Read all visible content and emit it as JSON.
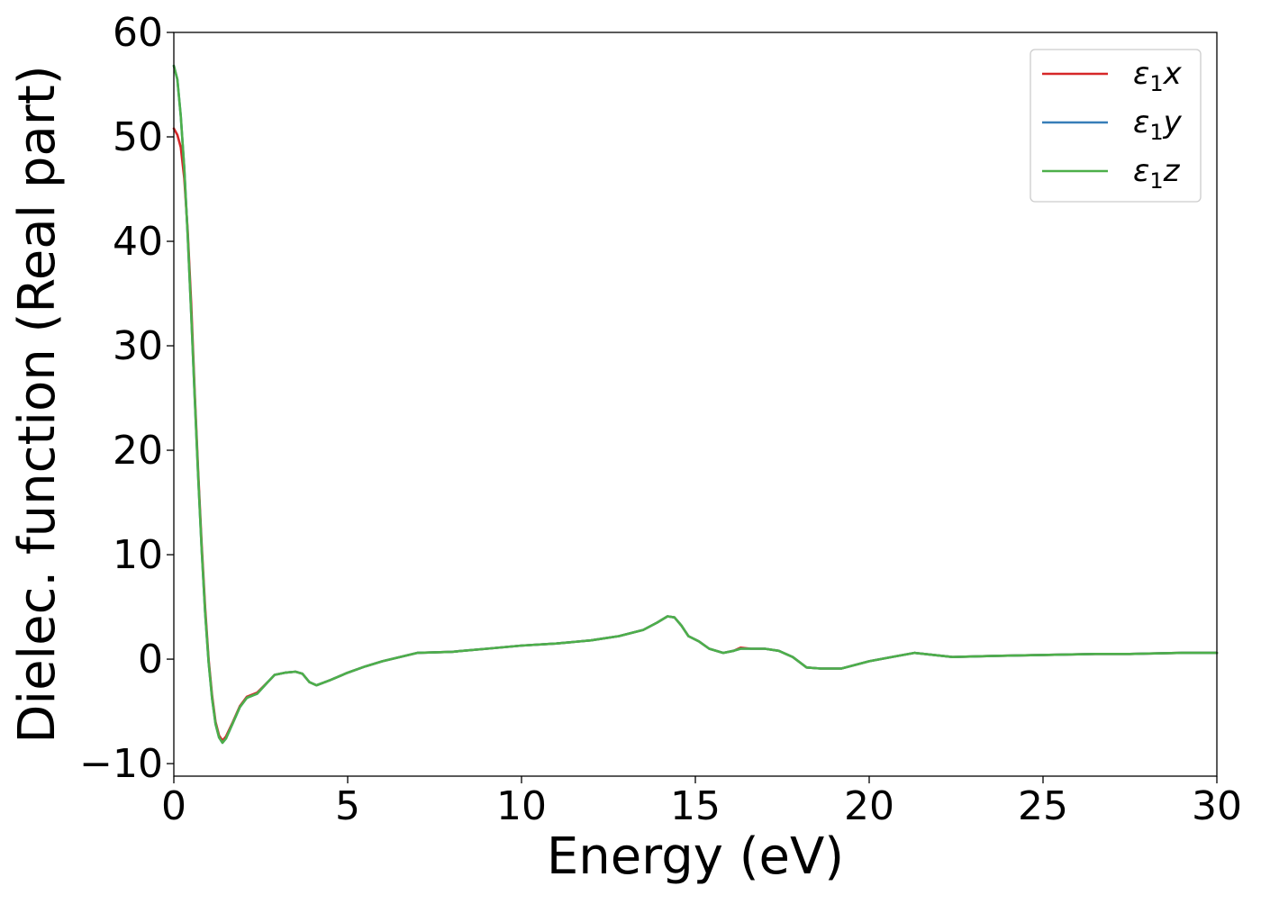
{
  "chart_data": {
    "type": "line",
    "xlabel": "Energy (eV)",
    "ylabel": "Dielec. function (Real part)",
    "xlim": [
      0,
      30
    ],
    "ylim": [
      -11.2,
      60
    ],
    "xticks": [
      0,
      5,
      10,
      15,
      20,
      25,
      30
    ],
    "xtick_labels": [
      "0",
      "5",
      "10",
      "15",
      "20",
      "25",
      "30"
    ],
    "yticks": [
      -10,
      0,
      10,
      20,
      30,
      40,
      50,
      60
    ],
    "ytick_labels": [
      "−10",
      "0",
      "10",
      "20",
      "30",
      "40",
      "50",
      "60"
    ],
    "grid": false,
    "legend_position": "top-right",
    "series": [
      {
        "name": "ε₁x",
        "legend_main": "ε",
        "legend_sub": "1",
        "legend_var": "x",
        "color": "#d62728",
        "points": [
          [
            0,
            50.8
          ],
          [
            0.1,
            50.2
          ],
          [
            0.2,
            49
          ],
          [
            0.3,
            46
          ],
          [
            0.4,
            41
          ],
          [
            0.5,
            34
          ],
          [
            0.6,
            25.5
          ],
          [
            0.7,
            18
          ],
          [
            0.8,
            11
          ],
          [
            0.9,
            5
          ],
          [
            1.0,
            0
          ],
          [
            1.1,
            -3.5
          ],
          [
            1.2,
            -6
          ],
          [
            1.3,
            -7.3
          ],
          [
            1.4,
            -7.8
          ],
          [
            1.5,
            -7.4
          ],
          [
            1.7,
            -6
          ],
          [
            1.9,
            -4.5
          ],
          [
            2.1,
            -3.6
          ],
          [
            2.4,
            -3.2
          ],
          [
            2.7,
            -2.2
          ],
          [
            2.9,
            -1.5
          ],
          [
            3.2,
            -1.3
          ],
          [
            3.5,
            -1.2
          ],
          [
            3.7,
            -1.4
          ],
          [
            3.9,
            -2.2
          ],
          [
            4.1,
            -2.5
          ],
          [
            4.5,
            -2.0
          ],
          [
            5.0,
            -1.3
          ],
          [
            5.5,
            -0.7
          ],
          [
            6.0,
            -0.2
          ],
          [
            7.0,
            0.6
          ],
          [
            8.0,
            0.7
          ],
          [
            9.0,
            1.0
          ],
          [
            10.0,
            1.3
          ],
          [
            11.0,
            1.5
          ],
          [
            12.0,
            1.8
          ],
          [
            12.8,
            2.2
          ],
          [
            13.5,
            2.8
          ],
          [
            13.9,
            3.5
          ],
          [
            14.2,
            4.1
          ],
          [
            14.4,
            4.0
          ],
          [
            14.6,
            3.2
          ],
          [
            14.8,
            2.2
          ],
          [
            15.1,
            1.7
          ],
          [
            15.4,
            1.0
          ],
          [
            15.8,
            0.6
          ],
          [
            16.1,
            0.8
          ],
          [
            16.3,
            1.1
          ],
          [
            16.6,
            1.0
          ],
          [
            17.0,
            1.0
          ],
          [
            17.4,
            0.8
          ],
          [
            17.8,
            0.2
          ],
          [
            18.2,
            -0.8
          ],
          [
            18.6,
            -0.9
          ],
          [
            19.2,
            -0.9
          ],
          [
            20.0,
            -0.2
          ],
          [
            20.8,
            0.3
          ],
          [
            21.3,
            0.6
          ],
          [
            22.4,
            0.2
          ],
          [
            23.5,
            0.3
          ],
          [
            25.0,
            0.4
          ],
          [
            26.5,
            0.5
          ],
          [
            27.5,
            0.5
          ],
          [
            29.0,
            0.6
          ],
          [
            30.0,
            0.6
          ]
        ]
      },
      {
        "name": "ε₁y",
        "legend_main": "ε",
        "legend_sub": "1",
        "legend_var": "y",
        "color": "#377eb8",
        "points": [
          [
            0,
            56.8
          ],
          [
            0.1,
            55.5
          ],
          [
            0.2,
            52
          ],
          [
            0.3,
            47
          ],
          [
            0.4,
            40.5
          ],
          [
            0.5,
            33
          ],
          [
            0.6,
            25
          ],
          [
            0.7,
            17.5
          ],
          [
            0.8,
            10.5
          ],
          [
            0.9,
            4.5
          ],
          [
            1.0,
            -0.3
          ],
          [
            1.1,
            -3.8
          ],
          [
            1.2,
            -6.2
          ],
          [
            1.3,
            -7.5
          ],
          [
            1.4,
            -8.0
          ],
          [
            1.5,
            -7.6
          ],
          [
            1.7,
            -6.1
          ],
          [
            1.9,
            -4.6
          ],
          [
            2.1,
            -3.7
          ],
          [
            2.4,
            -3.3
          ],
          [
            2.7,
            -2.2
          ],
          [
            2.9,
            -1.5
          ],
          [
            3.2,
            -1.3
          ],
          [
            3.5,
            -1.2
          ],
          [
            3.7,
            -1.4
          ],
          [
            3.9,
            -2.2
          ],
          [
            4.1,
            -2.5
          ],
          [
            4.5,
            -2.0
          ],
          [
            5.0,
            -1.3
          ],
          [
            5.5,
            -0.7
          ],
          [
            6.0,
            -0.2
          ],
          [
            7.0,
            0.6
          ],
          [
            8.0,
            0.7
          ],
          [
            9.0,
            1.0
          ],
          [
            10.0,
            1.3
          ],
          [
            11.0,
            1.5
          ],
          [
            12.0,
            1.8
          ],
          [
            12.8,
            2.2
          ],
          [
            13.5,
            2.8
          ],
          [
            13.9,
            3.5
          ],
          [
            14.2,
            4.1
          ],
          [
            14.4,
            4.0
          ],
          [
            14.6,
            3.2
          ],
          [
            14.8,
            2.2
          ],
          [
            15.1,
            1.7
          ],
          [
            15.4,
            1.0
          ],
          [
            15.8,
            0.6
          ],
          [
            16.1,
            0.8
          ],
          [
            16.3,
            1.0
          ],
          [
            16.6,
            1.0
          ],
          [
            17.0,
            1.0
          ],
          [
            17.4,
            0.8
          ],
          [
            17.8,
            0.2
          ],
          [
            18.2,
            -0.8
          ],
          [
            18.6,
            -0.9
          ],
          [
            19.2,
            -0.9
          ],
          [
            20.0,
            -0.2
          ],
          [
            20.8,
            0.3
          ],
          [
            21.3,
            0.6
          ],
          [
            22.4,
            0.2
          ],
          [
            23.5,
            0.3
          ],
          [
            25.0,
            0.4
          ],
          [
            26.5,
            0.5
          ],
          [
            27.5,
            0.5
          ],
          [
            29.0,
            0.6
          ],
          [
            30.0,
            0.6
          ]
        ]
      },
      {
        "name": "ε₁z",
        "legend_main": "ε",
        "legend_sub": "1",
        "legend_var": "z",
        "color": "#4daf4a",
        "points": [
          [
            0,
            56.8
          ],
          [
            0.1,
            55.5
          ],
          [
            0.2,
            52
          ],
          [
            0.3,
            47
          ],
          [
            0.4,
            40.5
          ],
          [
            0.5,
            33
          ],
          [
            0.6,
            25
          ],
          [
            0.7,
            17.5
          ],
          [
            0.8,
            10.5
          ],
          [
            0.9,
            4.5
          ],
          [
            1.0,
            -0.3
          ],
          [
            1.1,
            -3.8
          ],
          [
            1.2,
            -6.2
          ],
          [
            1.3,
            -7.5
          ],
          [
            1.4,
            -8.0
          ],
          [
            1.5,
            -7.6
          ],
          [
            1.7,
            -6.1
          ],
          [
            1.9,
            -4.6
          ],
          [
            2.1,
            -3.7
          ],
          [
            2.4,
            -3.3
          ],
          [
            2.7,
            -2.2
          ],
          [
            2.9,
            -1.5
          ],
          [
            3.2,
            -1.3
          ],
          [
            3.5,
            -1.2
          ],
          [
            3.7,
            -1.4
          ],
          [
            3.9,
            -2.2
          ],
          [
            4.1,
            -2.5
          ],
          [
            4.5,
            -2.0
          ],
          [
            5.0,
            -1.3
          ],
          [
            5.5,
            -0.7
          ],
          [
            6.0,
            -0.2
          ],
          [
            7.0,
            0.6
          ],
          [
            8.0,
            0.7
          ],
          [
            9.0,
            1.0
          ],
          [
            10.0,
            1.3
          ],
          [
            11.0,
            1.5
          ],
          [
            12.0,
            1.8
          ],
          [
            12.8,
            2.2
          ],
          [
            13.5,
            2.8
          ],
          [
            13.9,
            3.5
          ],
          [
            14.2,
            4.1
          ],
          [
            14.4,
            4.0
          ],
          [
            14.6,
            3.2
          ],
          [
            14.8,
            2.2
          ],
          [
            15.1,
            1.7
          ],
          [
            15.4,
            1.0
          ],
          [
            15.8,
            0.6
          ],
          [
            16.1,
            0.8
          ],
          [
            16.3,
            1.0
          ],
          [
            16.6,
            1.0
          ],
          [
            17.0,
            1.0
          ],
          [
            17.4,
            0.8
          ],
          [
            17.8,
            0.2
          ],
          [
            18.2,
            -0.8
          ],
          [
            18.6,
            -0.9
          ],
          [
            19.2,
            -0.9
          ],
          [
            20.0,
            -0.2
          ],
          [
            20.8,
            0.3
          ],
          [
            21.3,
            0.6
          ],
          [
            22.4,
            0.2
          ],
          [
            23.5,
            0.3
          ],
          [
            25.0,
            0.4
          ],
          [
            26.5,
            0.5
          ],
          [
            27.5,
            0.5
          ],
          [
            29.0,
            0.6
          ],
          [
            30.0,
            0.6
          ]
        ]
      }
    ]
  }
}
